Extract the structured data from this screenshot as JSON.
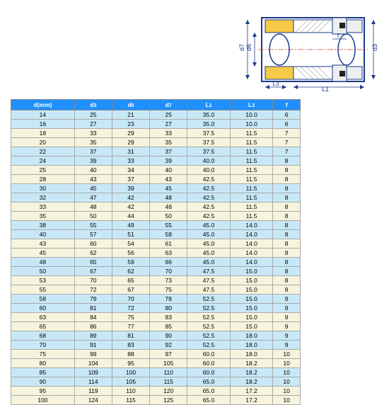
{
  "diagram": {
    "labels": {
      "d7": "d7",
      "d6": "d6",
      "d3": "d3",
      "L1": "L1",
      "L3": "L3",
      "f": "f"
    },
    "colors": {
      "outline": "#1a3a8a",
      "yellow": "#f7c948",
      "hatch": "#666666",
      "centerline": "#d93838",
      "black": "#222222"
    }
  },
  "table": {
    "headers": [
      "d(mm)",
      "d3",
      "d6",
      "d7",
      "L1",
      "L3",
      "f"
    ],
    "band_colors": [
      "#c8e8f7",
      "#f7f4dd"
    ],
    "header_bg": "#1e90ff",
    "header_fg": "#ffffff",
    "rows": [
      [
        "14",
        "25",
        "21",
        "25",
        "35.0",
        "10.0",
        "6"
      ],
      [
        "16",
        "27",
        "23",
        "27",
        "35.0",
        "10.0",
        "6"
      ],
      [
        "18",
        "33",
        "29",
        "33",
        "37.5",
        "11.5",
        "7"
      ],
      [
        "20",
        "35",
        "29",
        "35",
        "37.5",
        "11.5",
        "7"
      ],
      [
        "22",
        "37",
        "31",
        "37",
        "37.5",
        "11.5",
        "7"
      ],
      [
        "24",
        "39",
        "33",
        "39",
        "40.0",
        "11.5",
        "8"
      ],
      [
        "25",
        "40",
        "34",
        "40",
        "40.0",
        "11.5",
        "8"
      ],
      [
        "28",
        "43",
        "37",
        "43",
        "42.5",
        "11.5",
        "8"
      ],
      [
        "30",
        "45",
        "39",
        "45",
        "42.5",
        "11.5",
        "8"
      ],
      [
        "32",
        "47",
        "42",
        "48",
        "42.5",
        "11.5",
        "8"
      ],
      [
        "33",
        "48",
        "42",
        "48",
        "42.5",
        "11.5",
        "8"
      ],
      [
        "35",
        "50",
        "44",
        "50",
        "42.5",
        "11.5",
        "8"
      ],
      [
        "38",
        "55",
        "49",
        "55",
        "45.0",
        "14.0",
        "8"
      ],
      [
        "40",
        "57",
        "51",
        "58",
        "45.0",
        "14.0",
        "8"
      ],
      [
        "43",
        "60",
        "54",
        "61",
        "45.0",
        "14.0",
        "8"
      ],
      [
        "45",
        "62",
        "56",
        "63",
        "45.0",
        "14.0",
        "8"
      ],
      [
        "48",
        "65",
        "59",
        "66",
        "45.0",
        "14.0",
        "8"
      ],
      [
        "50",
        "67",
        "62",
        "70",
        "47.5",
        "15.0",
        "8"
      ],
      [
        "53",
        "70",
        "65",
        "73",
        "47.5",
        "15.0",
        "8"
      ],
      [
        "55",
        "72",
        "67",
        "75",
        "47.5",
        "15.0",
        "8"
      ],
      [
        "58",
        "79",
        "70",
        "78",
        "52.5",
        "15.0",
        "9"
      ],
      [
        "60",
        "81",
        "72",
        "80",
        "52.5",
        "15.0",
        "9"
      ],
      [
        "63",
        "84",
        "75",
        "83",
        "52.5",
        "15.0",
        "9"
      ],
      [
        "65",
        "86",
        "77",
        "85",
        "52.5",
        "15.0",
        "9"
      ],
      [
        "68",
        "89",
        "81",
        "90",
        "52.5",
        "18.0",
        "9"
      ],
      [
        "70",
        "91",
        "83",
        "92",
        "52.5",
        "18.0",
        "9"
      ],
      [
        "75",
        "99",
        "88",
        "97",
        "60.0",
        "18.0",
        "10"
      ],
      [
        "80",
        "104",
        "95",
        "105",
        "60.0",
        "18.2",
        "10"
      ],
      [
        "85",
        "109",
        "100",
        "110",
        "60.0",
        "18.2",
        "10"
      ],
      [
        "90",
        "114",
        "105",
        "115",
        "65.0",
        "18.2",
        "10"
      ],
      [
        "95",
        "119",
        "110",
        "120",
        "65.0",
        "17.2",
        "10"
      ],
      [
        "100",
        "124",
        "115",
        "125",
        "65.0",
        "17.2",
        "10"
      ]
    ]
  }
}
